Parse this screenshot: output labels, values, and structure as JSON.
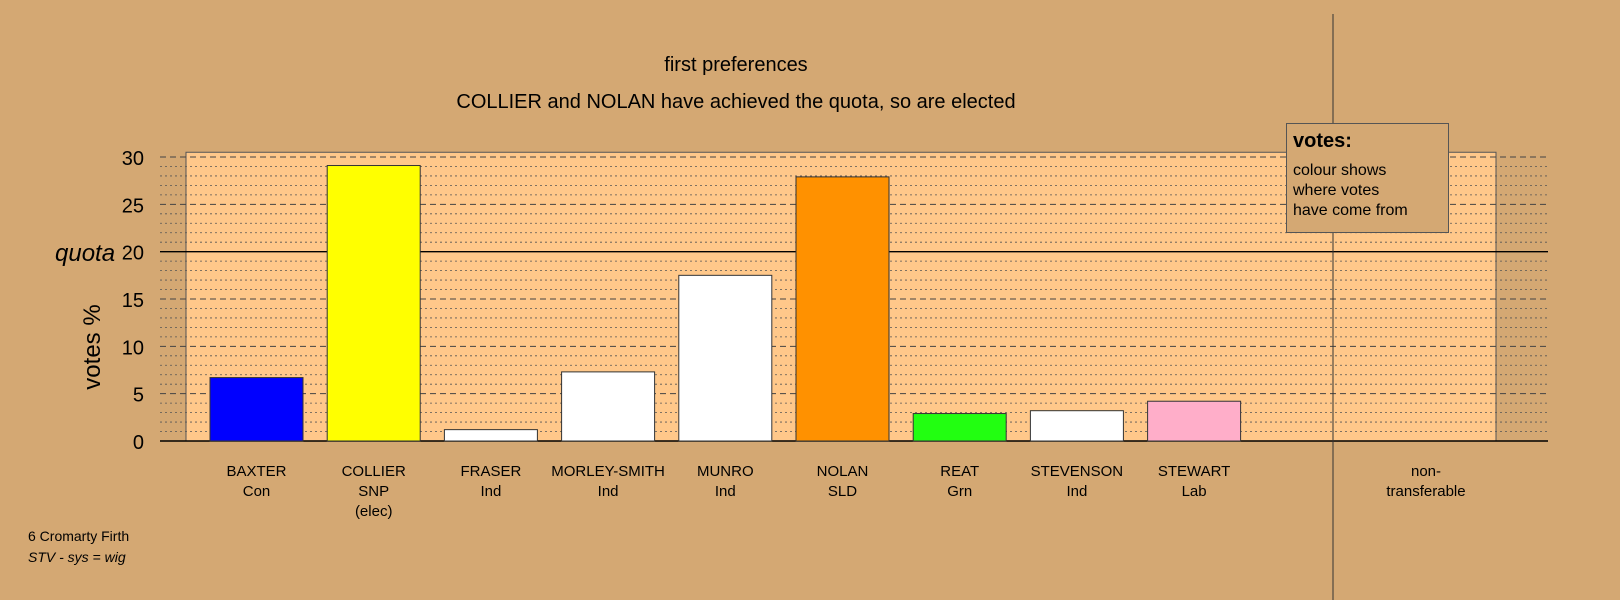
{
  "chart_data": {
    "type": "bar",
    "title": "first preferences",
    "subtitle": "COLLIER and NOLAN have achieved the quota, so are elected",
    "ylabel": "votes %",
    "ylim": [
      0,
      30
    ],
    "yticks": [
      0,
      5,
      10,
      15,
      20,
      25,
      30
    ],
    "quota": 20,
    "quota_label": "quota",
    "categories": [
      {
        "name": "BAXTER",
        "party": "Con",
        "note": "",
        "value": 6.7,
        "color": "#0000ff"
      },
      {
        "name": "COLLIER",
        "party": "SNP",
        "note": "(elec)",
        "value": 29.1,
        "color": "#ffff00"
      },
      {
        "name": "FRASER",
        "party": "Ind",
        "note": "",
        "value": 1.2,
        "color": "#ffffff"
      },
      {
        "name": "MORLEY-SMITH",
        "party": "Ind",
        "note": "",
        "value": 7.3,
        "color": "#ffffff"
      },
      {
        "name": "MUNRO",
        "party": "Ind",
        "note": "",
        "value": 17.5,
        "color": "#ffffff"
      },
      {
        "name": "NOLAN",
        "party": "SLD",
        "note": "",
        "value": 27.9,
        "color": "#ff9100"
      },
      {
        "name": "REAT",
        "party": "Grn",
        "note": "",
        "value": 2.9,
        "color": "#22ff11"
      },
      {
        "name": "STEVENSON",
        "party": "Ind",
        "note": "",
        "value": 3.2,
        "color": "#ffffff"
      },
      {
        "name": "STEWART",
        "party": "Lab",
        "note": "",
        "value": 4.2,
        "color": "#ffaec9"
      }
    ],
    "nontransferable": {
      "label_line1": "non-",
      "label_line2": "transferable",
      "value": 0
    },
    "grid": true,
    "legend_placement": "top-right"
  },
  "legend": {
    "title": "votes:",
    "lines": [
      "colour shows",
      "where votes",
      "have come from"
    ]
  },
  "footer": {
    "line1": "6 Cromarty Firth",
    "line2": "STV - sys = wig"
  },
  "colors": {
    "background": "#d4a873",
    "plot_background": "#ffc88a"
  }
}
